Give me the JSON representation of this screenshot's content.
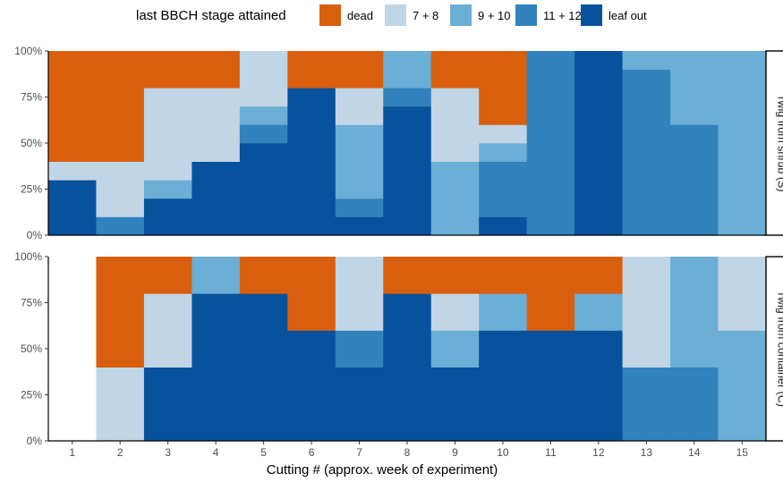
{
  "chart_data": {
    "type": "bar",
    "subtype": "stacked-proportion",
    "xlabel": "Cutting # (approx. week of experiment)",
    "categories": [
      "1",
      "2",
      "3",
      "4",
      "5",
      "6",
      "7",
      "8",
      "9",
      "10",
      "11",
      "12",
      "13",
      "14",
      "15"
    ],
    "y_ticks": [
      "0%",
      "25%",
      "50%",
      "75%",
      "100%"
    ],
    "ylim": [
      0,
      1
    ],
    "legend": {
      "title": "last BBCH stage attained",
      "position": "top",
      "entries": [
        {
          "key": "dead",
          "label": "dead",
          "color": "#D95F0E"
        },
        {
          "key": "s78",
          "label": "7 + 8",
          "color": "#C0D6E6"
        },
        {
          "key": "s910",
          "label": "9 + 10",
          "color": "#6BAED6"
        },
        {
          "key": "s1112",
          "label": "11 + 12",
          "color": "#3182BD"
        },
        {
          "key": "leaf",
          "label": "leaf out",
          "color": "#08519C"
        }
      ]
    },
    "stack_order_bottom_to_top": [
      "leaf",
      "s1112",
      "s910",
      "s78",
      "dead"
    ],
    "panels": [
      {
        "label": "Twig from shrub (S)",
        "data": {
          "leaf": [
            0.3,
            0.0,
            0.2,
            0.4,
            0.5,
            0.8,
            0.1,
            0.7,
            0.0,
            0.1,
            0.0,
            1.0,
            0.0,
            0.0,
            0.0
          ],
          "s1112": [
            0.0,
            0.1,
            0.0,
            0.0,
            0.1,
            0.0,
            0.1,
            0.1,
            0.0,
            0.3,
            1.0,
            0.0,
            0.9,
            0.6,
            0.0
          ],
          "s910": [
            0.0,
            0.0,
            0.1,
            0.0,
            0.1,
            0.0,
            0.4,
            0.2,
            0.4,
            0.1,
            0.0,
            0.0,
            0.1,
            0.4,
            1.0
          ],
          "s78": [
            0.1,
            0.3,
            0.5,
            0.4,
            0.3,
            0.0,
            0.2,
            0.0,
            0.4,
            0.1,
            0.0,
            0.0,
            0.0,
            0.0,
            0.0
          ],
          "dead": [
            0.6,
            0.6,
            0.2,
            0.2,
            0.0,
            0.2,
            0.2,
            0.0,
            0.2,
            0.4,
            0.0,
            0.0,
            0.0,
            0.0,
            0.0
          ]
        }
      },
      {
        "label": "Twig from container (C)",
        "data": {
          "leaf": [
            0.0,
            0.0,
            0.4,
            0.8,
            0.8,
            0.6,
            0.4,
            0.8,
            0.4,
            0.6,
            0.6,
            0.6,
            0.0,
            0.0,
            0.0
          ],
          "s1112": [
            0.0,
            0.0,
            0.0,
            0.0,
            0.0,
            0.0,
            0.2,
            0.0,
            0.0,
            0.0,
            0.0,
            0.0,
            0.4,
            0.4,
            0.0
          ],
          "s910": [
            0.0,
            0.0,
            0.0,
            0.2,
            0.0,
            0.0,
            0.0,
            0.0,
            0.2,
            0.2,
            0.0,
            0.2,
            0.0,
            0.6,
            0.6
          ],
          "s78": [
            0.0,
            0.4,
            0.4,
            0.0,
            0.0,
            0.0,
            0.4,
            0.0,
            0.2,
            0.0,
            0.0,
            0.0,
            0.6,
            0.0,
            0.4
          ],
          "dead": [
            0.0,
            0.6,
            0.2,
            0.0,
            0.2,
            0.4,
            0.0,
            0.2,
            0.2,
            0.2,
            0.4,
            0.2,
            0.0,
            0.0,
            0.0
          ]
        }
      }
    ]
  }
}
